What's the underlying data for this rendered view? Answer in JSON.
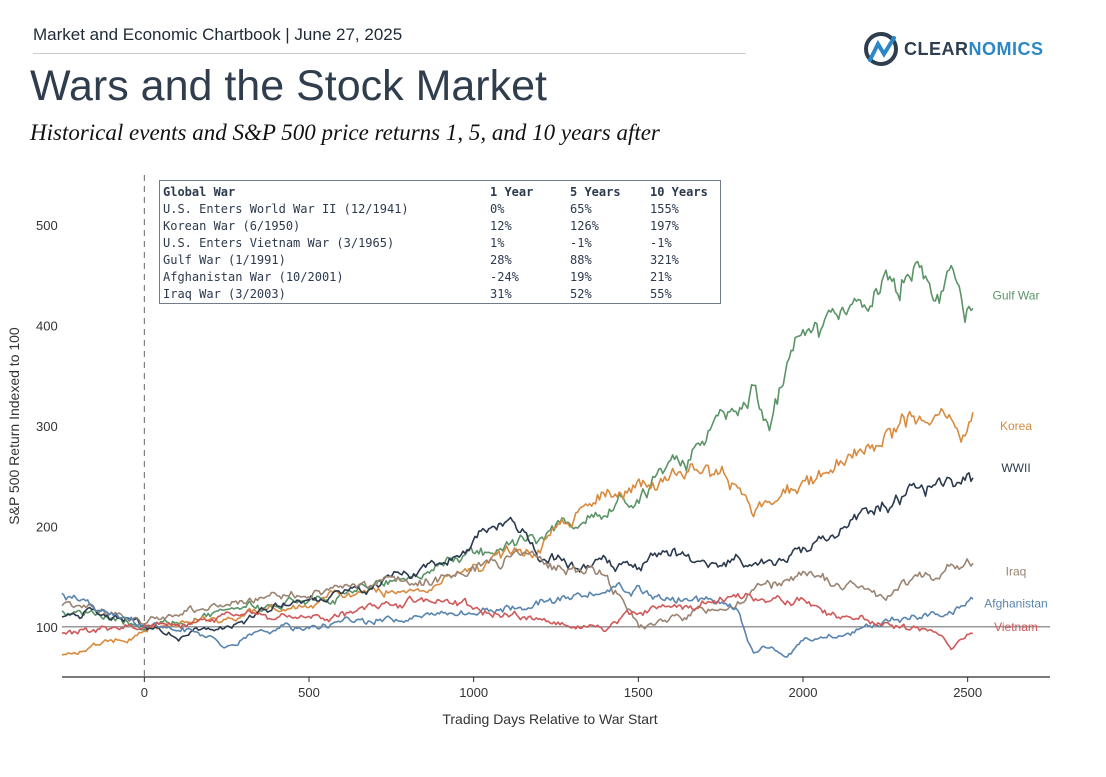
{
  "header": {
    "kicker": "Market and Economic Chartbook | June 27, 2025",
    "logo_a": "CLEAR",
    "logo_b": "NOMICS",
    "title": "Wars and the Stock Market",
    "subtitle": "Historical events and S&P 500 price returns 1, 5, and 10 years after"
  },
  "table": {
    "headers": [
      "Global War",
      "1 Year",
      "5 Years",
      "10 Years"
    ],
    "rows": [
      [
        "U.S. Enters World War II (12/1941)",
        "0%",
        "65%",
        "155%"
      ],
      [
        "Korean War (6/1950)",
        "12%",
        "126%",
        "197%"
      ],
      [
        "U.S. Enters Vietnam War (3/1965)",
        "1%",
        "-1%",
        "-1%"
      ],
      [
        "Gulf War (1/1991)",
        "28%",
        "88%",
        "321%"
      ],
      [
        "Afghanistan War (10/2001)",
        "-24%",
        "19%",
        "21%"
      ],
      [
        "Iraq War (3/2003)",
        "31%",
        "52%",
        "55%"
      ]
    ]
  },
  "chart_data": {
    "type": "line",
    "xlabel": "Trading Days Relative to War Start",
    "ylabel": "S&P 500 Return Indexed to 100",
    "xlim": [
      -250,
      2750
    ],
    "ylim": [
      50,
      550
    ],
    "xticks": [
      0,
      500,
      1000,
      1500,
      2000,
      2500
    ],
    "yticks": [
      100,
      200,
      300,
      400,
      500
    ],
    "reference_line_y": 100,
    "event_line_x": 0,
    "grid": false,
    "series": [
      {
        "name": "Gulf War",
        "color": "#5b9467",
        "x": [
          -250,
          -150,
          -50,
          0,
          100,
          200,
          300,
          400,
          500,
          600,
          700,
          800,
          900,
          1000,
          1100,
          1200,
          1300,
          1400,
          1500,
          1600,
          1700,
          1800,
          1850,
          1900,
          1950,
          2000,
          2100,
          2200,
          2300,
          2350,
          2400,
          2450,
          2500,
          2520
        ],
        "y": [
          118,
          115,
          108,
          100,
          108,
          112,
          118,
          122,
          125,
          133,
          140,
          148,
          160,
          172,
          180,
          192,
          200,
          220,
          232,
          258,
          280,
          325,
          350,
          298,
          355,
          378,
          410,
          420,
          440,
          462,
          445,
          460,
          418,
          425
        ]
      },
      {
        "name": "Korea",
        "color": "#d88b3f",
        "x": [
          -250,
          -150,
          -50,
          0,
          100,
          200,
          300,
          400,
          500,
          600,
          700,
          800,
          900,
          1000,
          1100,
          1200,
          1300,
          1400,
          1500,
          1600,
          1700,
          1800,
          1850,
          1900,
          2000,
          2100,
          2200,
          2300,
          2400,
          2450,
          2500,
          2520
        ],
        "y": [
          74,
          82,
          90,
          98,
          103,
          107,
          112,
          118,
          123,
          130,
          136,
          140,
          145,
          160,
          172,
          180,
          210,
          240,
          235,
          245,
          262,
          240,
          212,
          222,
          235,
          258,
          275,
          305,
          300,
          292,
          288,
          300
        ]
      },
      {
        "name": "WWII",
        "color": "#2b3a4e",
        "x": [
          -250,
          -150,
          -50,
          0,
          100,
          200,
          300,
          400,
          500,
          600,
          700,
          800,
          900,
          1000,
          1050,
          1100,
          1150,
          1200,
          1300,
          1400,
          1500,
          1600,
          1700,
          1800,
          1900,
          2000,
          2100,
          2200,
          2300,
          2400,
          2450,
          2500,
          2520
        ],
        "y": [
          112,
          118,
          108,
          100,
          92,
          95,
          100,
          120,
          130,
          135,
          140,
          148,
          165,
          185,
          195,
          200,
          190,
          168,
          160,
          165,
          155,
          175,
          165,
          162,
          165,
          178,
          190,
          210,
          225,
          245,
          245,
          250,
          255
        ]
      },
      {
        "name": "Iraq",
        "color": "#9b8472",
        "x": [
          -250,
          -150,
          -50,
          0,
          100,
          200,
          300,
          400,
          500,
          600,
          700,
          800,
          900,
          1000,
          1100,
          1150,
          1200,
          1300,
          1400,
          1450,
          1500,
          1600,
          1700,
          1800,
          1900,
          2000,
          2100,
          2200,
          2250,
          2300,
          2400,
          2450,
          2500,
          2520
        ],
        "y": [
          125,
          118,
          108,
          100,
          115,
          120,
          125,
          130,
          135,
          138,
          140,
          145,
          150,
          158,
          170,
          175,
          165,
          160,
          155,
          130,
          100,
          108,
          118,
          128,
          142,
          150,
          140,
          145,
          130,
          145,
          152,
          160,
          165,
          158
        ]
      },
      {
        "name": "Afghanistan",
        "color": "#5985ae",
        "x": [
          -250,
          -150,
          -50,
          0,
          100,
          200,
          250,
          300,
          400,
          500,
          600,
          700,
          800,
          900,
          1000,
          1100,
          1200,
          1300,
          1400,
          1500,
          1600,
          1700,
          1800,
          1850,
          1900,
          1950,
          2000,
          2100,
          2200,
          2300,
          2400,
          2500,
          2520
        ],
        "y": [
          130,
          120,
          112,
          100,
          98,
          92,
          82,
          88,
          95,
          100,
          105,
          108,
          110,
          112,
          115,
          120,
          125,
          130,
          135,
          135,
          128,
          125,
          115,
          72,
          80,
          70,
          85,
          90,
          100,
          108,
          112,
          122,
          124
        ]
      },
      {
        "name": "Vietnam",
        "color": "#d0595a",
        "x": [
          -250,
          -150,
          -50,
          0,
          100,
          200,
          300,
          400,
          500,
          600,
          700,
          800,
          900,
          1000,
          1100,
          1200,
          1300,
          1400,
          1500,
          1600,
          1700,
          1800,
          1900,
          2000,
          2100,
          2200,
          2300,
          2400,
          2450,
          2500,
          2520
        ],
        "y": [
          92,
          95,
          100,
          100,
          105,
          108,
          112,
          110,
          108,
          115,
          118,
          125,
          128,
          118,
          112,
          108,
          105,
          98,
          115,
          120,
          120,
          128,
          130,
          128,
          110,
          105,
          100,
          95,
          80,
          90,
          98
        ]
      }
    ]
  }
}
